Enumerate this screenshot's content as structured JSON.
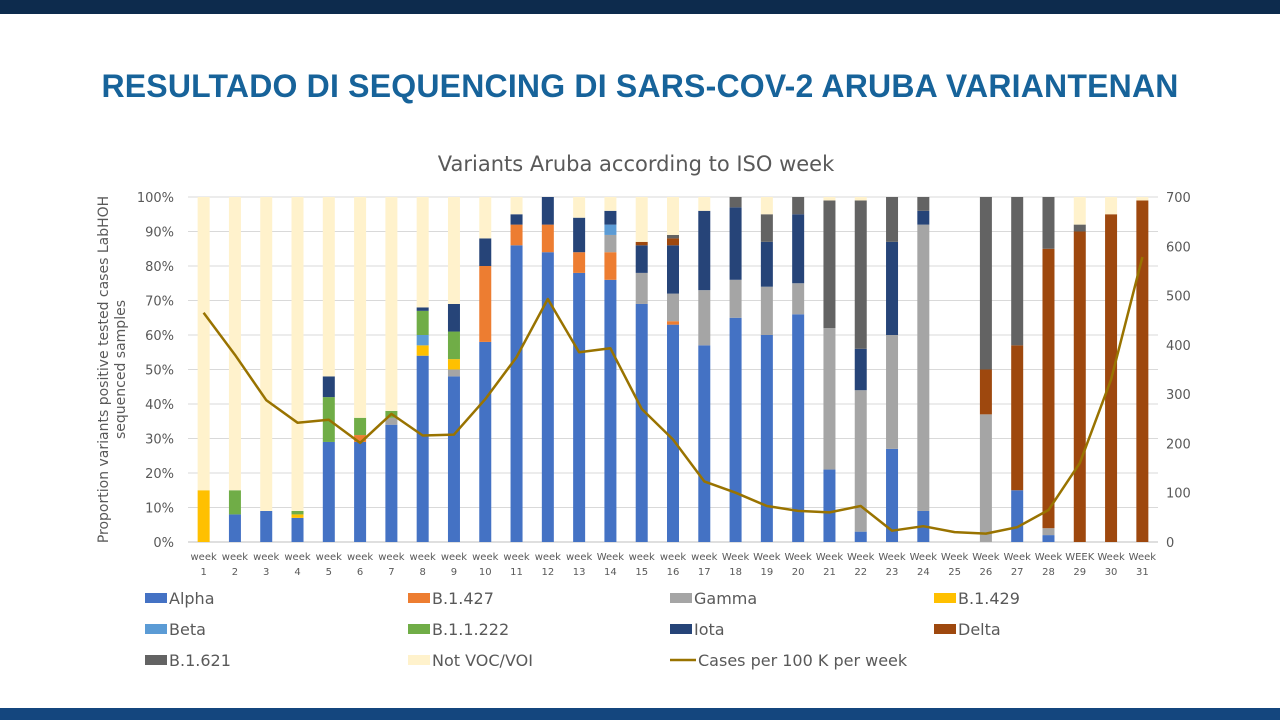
{
  "slide": {
    "title": "RESULTADO DI SEQUENCING DI SARS-COV-2 ARUBA VARIANTENAN",
    "accent_color": "#17639a",
    "top_bar_color": "#0d2b4d",
    "bottom_bar_color": "#14467e"
  },
  "chart_data": {
    "type": "bar",
    "stacked": true,
    "title": "Variants Aruba according to ISO week",
    "ylabel": "Proportion variants  positive tested cases LabHOH sequenced samples",
    "ylim": [
      0,
      100
    ],
    "y_ticks": [
      "0%",
      "10%",
      "20%",
      "30%",
      "40%",
      "50%",
      "60%",
      "70%",
      "80%",
      "90%",
      "100%"
    ],
    "y2lim": [
      0,
      700
    ],
    "y2_ticks": [
      "0",
      "100",
      "200",
      "300",
      "400",
      "500",
      "600",
      "700"
    ],
    "grid": true,
    "legend_position": "bottom",
    "categories": [
      [
        "week",
        "1"
      ],
      [
        "week",
        "2"
      ],
      [
        "week",
        "3"
      ],
      [
        "week",
        "4"
      ],
      [
        "week",
        "5"
      ],
      [
        "week",
        "6"
      ],
      [
        "week",
        "7"
      ],
      [
        "week",
        "8"
      ],
      [
        "week",
        "9"
      ],
      [
        "week",
        "10"
      ],
      [
        "week",
        "11"
      ],
      [
        "week",
        "12"
      ],
      [
        "week",
        "13"
      ],
      [
        "Week",
        "14"
      ],
      [
        "week",
        "15"
      ],
      [
        "week",
        "16"
      ],
      [
        "week",
        "17"
      ],
      [
        "Week",
        "18"
      ],
      [
        "Week",
        "19"
      ],
      [
        "Week",
        "20"
      ],
      [
        "Week",
        "21"
      ],
      [
        "Week",
        "22"
      ],
      [
        "Week",
        "23"
      ],
      [
        "Week",
        "24"
      ],
      [
        "Week",
        "25"
      ],
      [
        "Week",
        "26"
      ],
      [
        "Week",
        "27"
      ],
      [
        "Week",
        "28"
      ],
      [
        "WEEK",
        "29"
      ],
      [
        "Week",
        "30"
      ],
      [
        "Week",
        "31"
      ]
    ],
    "series": [
      {
        "name": "Alpha",
        "color": "#4472c4",
        "values": [
          0,
          8,
          9,
          7,
          29,
          29,
          34,
          54,
          48,
          58,
          86,
          84,
          78,
          76,
          69,
          63,
          57,
          65,
          60,
          66,
          21,
          3,
          27,
          9,
          0,
          0,
          15,
          2,
          0,
          0,
          0
        ]
      },
      {
        "name": "B.1.427",
        "color": "#ed7d31",
        "values": [
          0,
          0,
          0,
          0,
          0,
          2,
          0,
          0,
          0,
          22,
          6,
          8,
          6,
          8,
          0,
          1,
          0,
          0,
          0,
          0,
          0,
          0,
          0,
          0,
          0,
          0,
          0,
          0,
          0,
          0,
          0
        ]
      },
      {
        "name": "Gamma",
        "color": "#a5a5a5",
        "values": [
          0,
          0,
          0,
          0,
          0,
          0,
          2,
          0,
          2,
          0,
          0,
          0,
          0,
          5,
          9,
          8,
          16,
          11,
          14,
          9,
          41,
          41,
          33,
          83,
          0,
          37,
          0,
          2,
          0,
          0,
          0
        ]
      },
      {
        "name": "B.1.429",
        "color": "#ffc000",
        "values": [
          15,
          0,
          0,
          1,
          0,
          0,
          0,
          3,
          3,
          0,
          0,
          0,
          0,
          0,
          0,
          0,
          0,
          0,
          0,
          0,
          0,
          0,
          0,
          0,
          0,
          0,
          0,
          0,
          0,
          0,
          0
        ]
      },
      {
        "name": "Beta",
        "color": "#5b9bd5",
        "values": [
          0,
          0,
          0,
          0,
          0,
          0,
          0,
          3,
          0,
          0,
          0,
          0,
          0,
          3,
          0,
          0,
          0,
          0,
          0,
          0,
          0,
          0,
          0,
          0,
          0,
          0,
          0,
          0,
          0,
          0,
          0
        ]
      },
      {
        "name": "B.1.1.222",
        "color": "#70ad47",
        "values": [
          0,
          7,
          0,
          1,
          13,
          5,
          2,
          7,
          8,
          0,
          0,
          0,
          0,
          0,
          0,
          0,
          0,
          0,
          0,
          0,
          0,
          0,
          0,
          0,
          0,
          0,
          0,
          0,
          0,
          0,
          0
        ]
      },
      {
        "name": "Iota",
        "color": "#264478",
        "values": [
          0,
          0,
          0,
          0,
          6,
          0,
          0,
          1,
          8,
          8,
          3,
          8,
          10,
          4,
          8,
          14,
          23,
          21,
          13,
          20,
          0,
          12,
          27,
          4,
          0,
          0,
          0,
          0,
          0,
          0,
          0
        ]
      },
      {
        "name": "Delta",
        "color": "#9e480e",
        "values": [
          0,
          0,
          0,
          0,
          0,
          0,
          0,
          0,
          0,
          0,
          0,
          0,
          0,
          0,
          1,
          2,
          0,
          0,
          0,
          0,
          0,
          0,
          0,
          0,
          0,
          13,
          42,
          81,
          90,
          95,
          99
        ]
      },
      {
        "name": "B.1.621",
        "color": "#636363",
        "values": [
          0,
          0,
          0,
          0,
          0,
          0,
          0,
          0,
          0,
          0,
          0,
          0,
          0,
          0,
          0,
          1,
          0,
          3,
          8,
          6,
          37,
          43,
          13,
          4,
          0,
          50,
          43,
          15,
          2,
          0,
          0
        ]
      },
      {
        "name": "Not VOC/VOI",
        "color": "#fff2cc",
        "values": [
          85,
          85,
          91,
          91,
          52,
          64,
          62,
          32,
          31,
          12,
          5,
          0,
          6,
          4,
          13,
          11,
          4,
          0,
          5,
          0,
          2,
          2,
          0,
          0,
          0,
          0,
          0,
          0,
          8,
          5,
          1
        ]
      }
    ],
    "line": {
      "name": "Cases per 100 K per week",
      "color": "#997300",
      "axis": "secondary",
      "values": [
        465,
        380,
        288,
        242,
        248,
        201,
        260,
        216,
        218,
        290,
        375,
        493,
        385,
        393,
        270,
        208,
        123,
        100,
        73,
        63,
        60,
        73,
        23,
        32,
        20,
        17,
        30,
        65,
        160,
        330,
        578
      ]
    }
  }
}
